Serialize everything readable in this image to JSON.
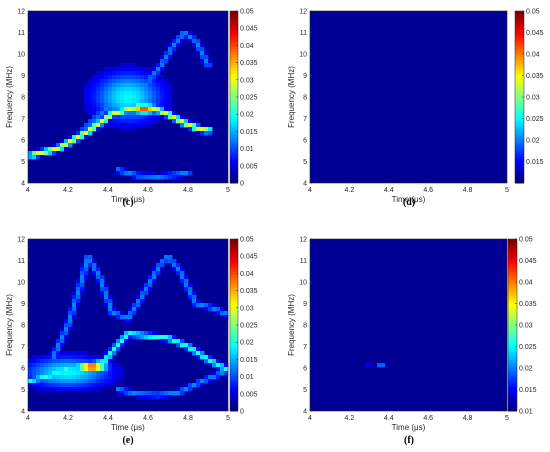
{
  "colors": {
    "background": "#00008f",
    "colormap": "jet",
    "axis": "#262626"
  },
  "chart_data": [
    {
      "type": "heatmap",
      "panel": "(c)",
      "title": "",
      "xlabel": "Time (μs)",
      "ylabel": "Frequency (MHz)",
      "xlim": [
        4,
        5
      ],
      "ylim": [
        4,
        12
      ],
      "xticks": [
        "4",
        "4.2",
        "4.4",
        "4.6",
        "4.8",
        "5"
      ],
      "yticks": [
        "4",
        "5",
        "6",
        "7",
        "8",
        "9",
        "10",
        "11",
        "12"
      ],
      "colorbar": {
        "range": [
          0,
          0.05
        ],
        "ticks": [
          "0",
          "0.005",
          "0.01",
          "0.015",
          "0.02",
          "0.025",
          "0.03",
          "0.035",
          "0.04",
          "0.045",
          "0.05"
        ]
      },
      "features": [
        {
          "kind": "ridge",
          "points": [
            [
              4.02,
              5.3
            ],
            [
              4.15,
              5.6
            ],
            [
              4.3,
              6.4
            ],
            [
              4.42,
              7.2
            ],
            [
              4.55,
              7.55
            ],
            [
              4.62,
              7.5
            ],
            [
              4.7,
              7.2
            ],
            [
              4.78,
              6.8
            ],
            [
              4.86,
              6.5
            ],
            [
              4.9,
              6.45
            ]
          ],
          "level": 0.03
        },
        {
          "kind": "ridge",
          "points": [
            [
              4.28,
              6.5
            ],
            [
              4.38,
              7.4
            ],
            [
              4.48,
              8.2
            ],
            [
              4.58,
              8.5
            ],
            [
              4.66,
              9.4
            ],
            [
              4.72,
              10.3
            ],
            [
              4.78,
              11.0
            ],
            [
              4.84,
              10.6
            ],
            [
              4.9,
              9.5
            ]
          ],
          "level": 0.012
        },
        {
          "kind": "ridge",
          "points": [
            [
              4.45,
              4.6
            ],
            [
              4.55,
              4.35
            ],
            [
              4.65,
              4.3
            ],
            [
              4.75,
              4.4
            ],
            [
              4.8,
              4.5
            ]
          ],
          "level": 0.012
        },
        {
          "kind": "blob",
          "center": [
            4.5,
            8.0
          ],
          "spread": [
            0.12,
            0.8
          ],
          "level": 0.018
        },
        {
          "kind": "blob",
          "center": [
            4.58,
            7.45
          ],
          "spread": [
            0.05,
            0.15
          ],
          "level": 0.04
        }
      ]
    },
    {
      "type": "heatmap",
      "panel": "(d)",
      "title": "",
      "xlabel": "Time (μs)",
      "ylabel": "Frequency (MHz)",
      "xlim": [
        4,
        5
      ],
      "ylim": [
        4,
        12
      ],
      "xticks": [
        "4",
        "4.2",
        "4.4",
        "4.6",
        "4.8",
        "5"
      ],
      "yticks": [
        "4",
        "5",
        "6",
        "7",
        "8",
        "9",
        "10",
        "11",
        "12"
      ],
      "colorbar": {
        "range": [
          0.01,
          0.05
        ],
        "ticks": [
          "0.015",
          "0.02",
          "0.025",
          "0.03",
          "0.035",
          "0.04",
          "0.045",
          "0.05"
        ]
      },
      "features": []
    },
    {
      "type": "heatmap",
      "panel": "(e)",
      "title": "",
      "xlabel": "Time (μs)",
      "ylabel": "Frequency (MHz)",
      "xlim": [
        4,
        5
      ],
      "ylim": [
        4,
        12
      ],
      "xticks": [
        "4",
        "4.2",
        "4.4",
        "4.6",
        "4.8",
        "5"
      ],
      "yticks": [
        "4",
        "5",
        "6",
        "7",
        "8",
        "9",
        "10",
        "11",
        "12"
      ],
      "colorbar": {
        "range": [
          0,
          0.05
        ],
        "ticks": [
          "0",
          "0.005",
          "0.01",
          "0.015",
          "0.02",
          "0.025",
          "0.03",
          "0.035",
          "0.04",
          "0.045",
          "0.05"
        ]
      },
      "features": [
        {
          "kind": "ridge",
          "points": [
            [
              4.0,
              5.4
            ],
            [
              4.1,
              5.6
            ],
            [
              4.2,
              6.0
            ],
            [
              4.3,
              6.15
            ],
            [
              4.38,
              6.3
            ],
            [
              4.45,
              7.1
            ],
            [
              4.5,
              7.6
            ],
            [
              4.6,
              7.5
            ],
            [
              4.7,
              7.4
            ],
            [
              4.8,
              7.0
            ],
            [
              4.9,
              6.4
            ],
            [
              5.0,
              5.9
            ]
          ],
          "level": 0.02
        },
        {
          "kind": "ridge",
          "points": [
            [
              4.12,
              6.4
            ],
            [
              4.2,
              8.0
            ],
            [
              4.26,
              9.8
            ],
            [
              4.3,
              11.2
            ],
            [
              4.36,
              10.2
            ],
            [
              4.42,
              8.6
            ],
            [
              4.5,
              8.3
            ],
            [
              4.58,
              9.5
            ],
            [
              4.66,
              10.8
            ],
            [
              4.7,
              11.2
            ],
            [
              4.76,
              10.5
            ],
            [
              4.84,
              9.0
            ],
            [
              4.92,
              8.8
            ],
            [
              5.0,
              8.5
            ]
          ],
          "level": 0.012
        },
        {
          "kind": "ridge",
          "points": [
            [
              4.45,
              5.0
            ],
            [
              4.55,
              4.8
            ],
            [
              4.65,
              4.75
            ],
            [
              4.75,
              4.85
            ],
            [
              4.85,
              5.3
            ],
            [
              5.0,
              5.9
            ]
          ],
          "level": 0.012
        },
        {
          "kind": "blob",
          "center": [
            4.32,
            6.05
          ],
          "spread": [
            0.05,
            0.12
          ],
          "level": 0.05
        },
        {
          "kind": "blob",
          "center": [
            4.2,
            5.8
          ],
          "spread": [
            0.15,
            0.5
          ],
          "level": 0.018
        }
      ]
    },
    {
      "type": "heatmap",
      "panel": "(f)",
      "title": "",
      "xlabel": "Time (μs)",
      "ylabel": "Frequency (MHz)",
      "xlim": [
        4,
        5
      ],
      "ylim": [
        4,
        12
      ],
      "xticks": [
        "4",
        "4.2",
        "4.4",
        "4.6",
        "4.8",
        "5"
      ],
      "yticks": [
        "4",
        "5",
        "6",
        "7",
        "8",
        "9",
        "10",
        "11",
        "12"
      ],
      "colorbar": {
        "range": [
          0.01,
          0.05
        ],
        "ticks": [
          "0.01",
          "0.015",
          "0.02",
          "0.025",
          "0.03",
          "0.035",
          "0.04",
          "0.045",
          "0.05"
        ]
      },
      "features": [
        {
          "kind": "blob",
          "center": [
            4.3,
            6.05
          ],
          "spread": [
            0.03,
            0.06
          ],
          "level": 0.04
        },
        {
          "kind": "blob",
          "center": [
            4.36,
            6.15
          ],
          "spread": [
            0.01,
            0.08
          ],
          "level": 0.03
        },
        {
          "kind": "blob",
          "center": [
            4.66,
            7.45
          ],
          "spread": [
            0.01,
            0.05
          ],
          "level": 0.013
        }
      ]
    }
  ]
}
